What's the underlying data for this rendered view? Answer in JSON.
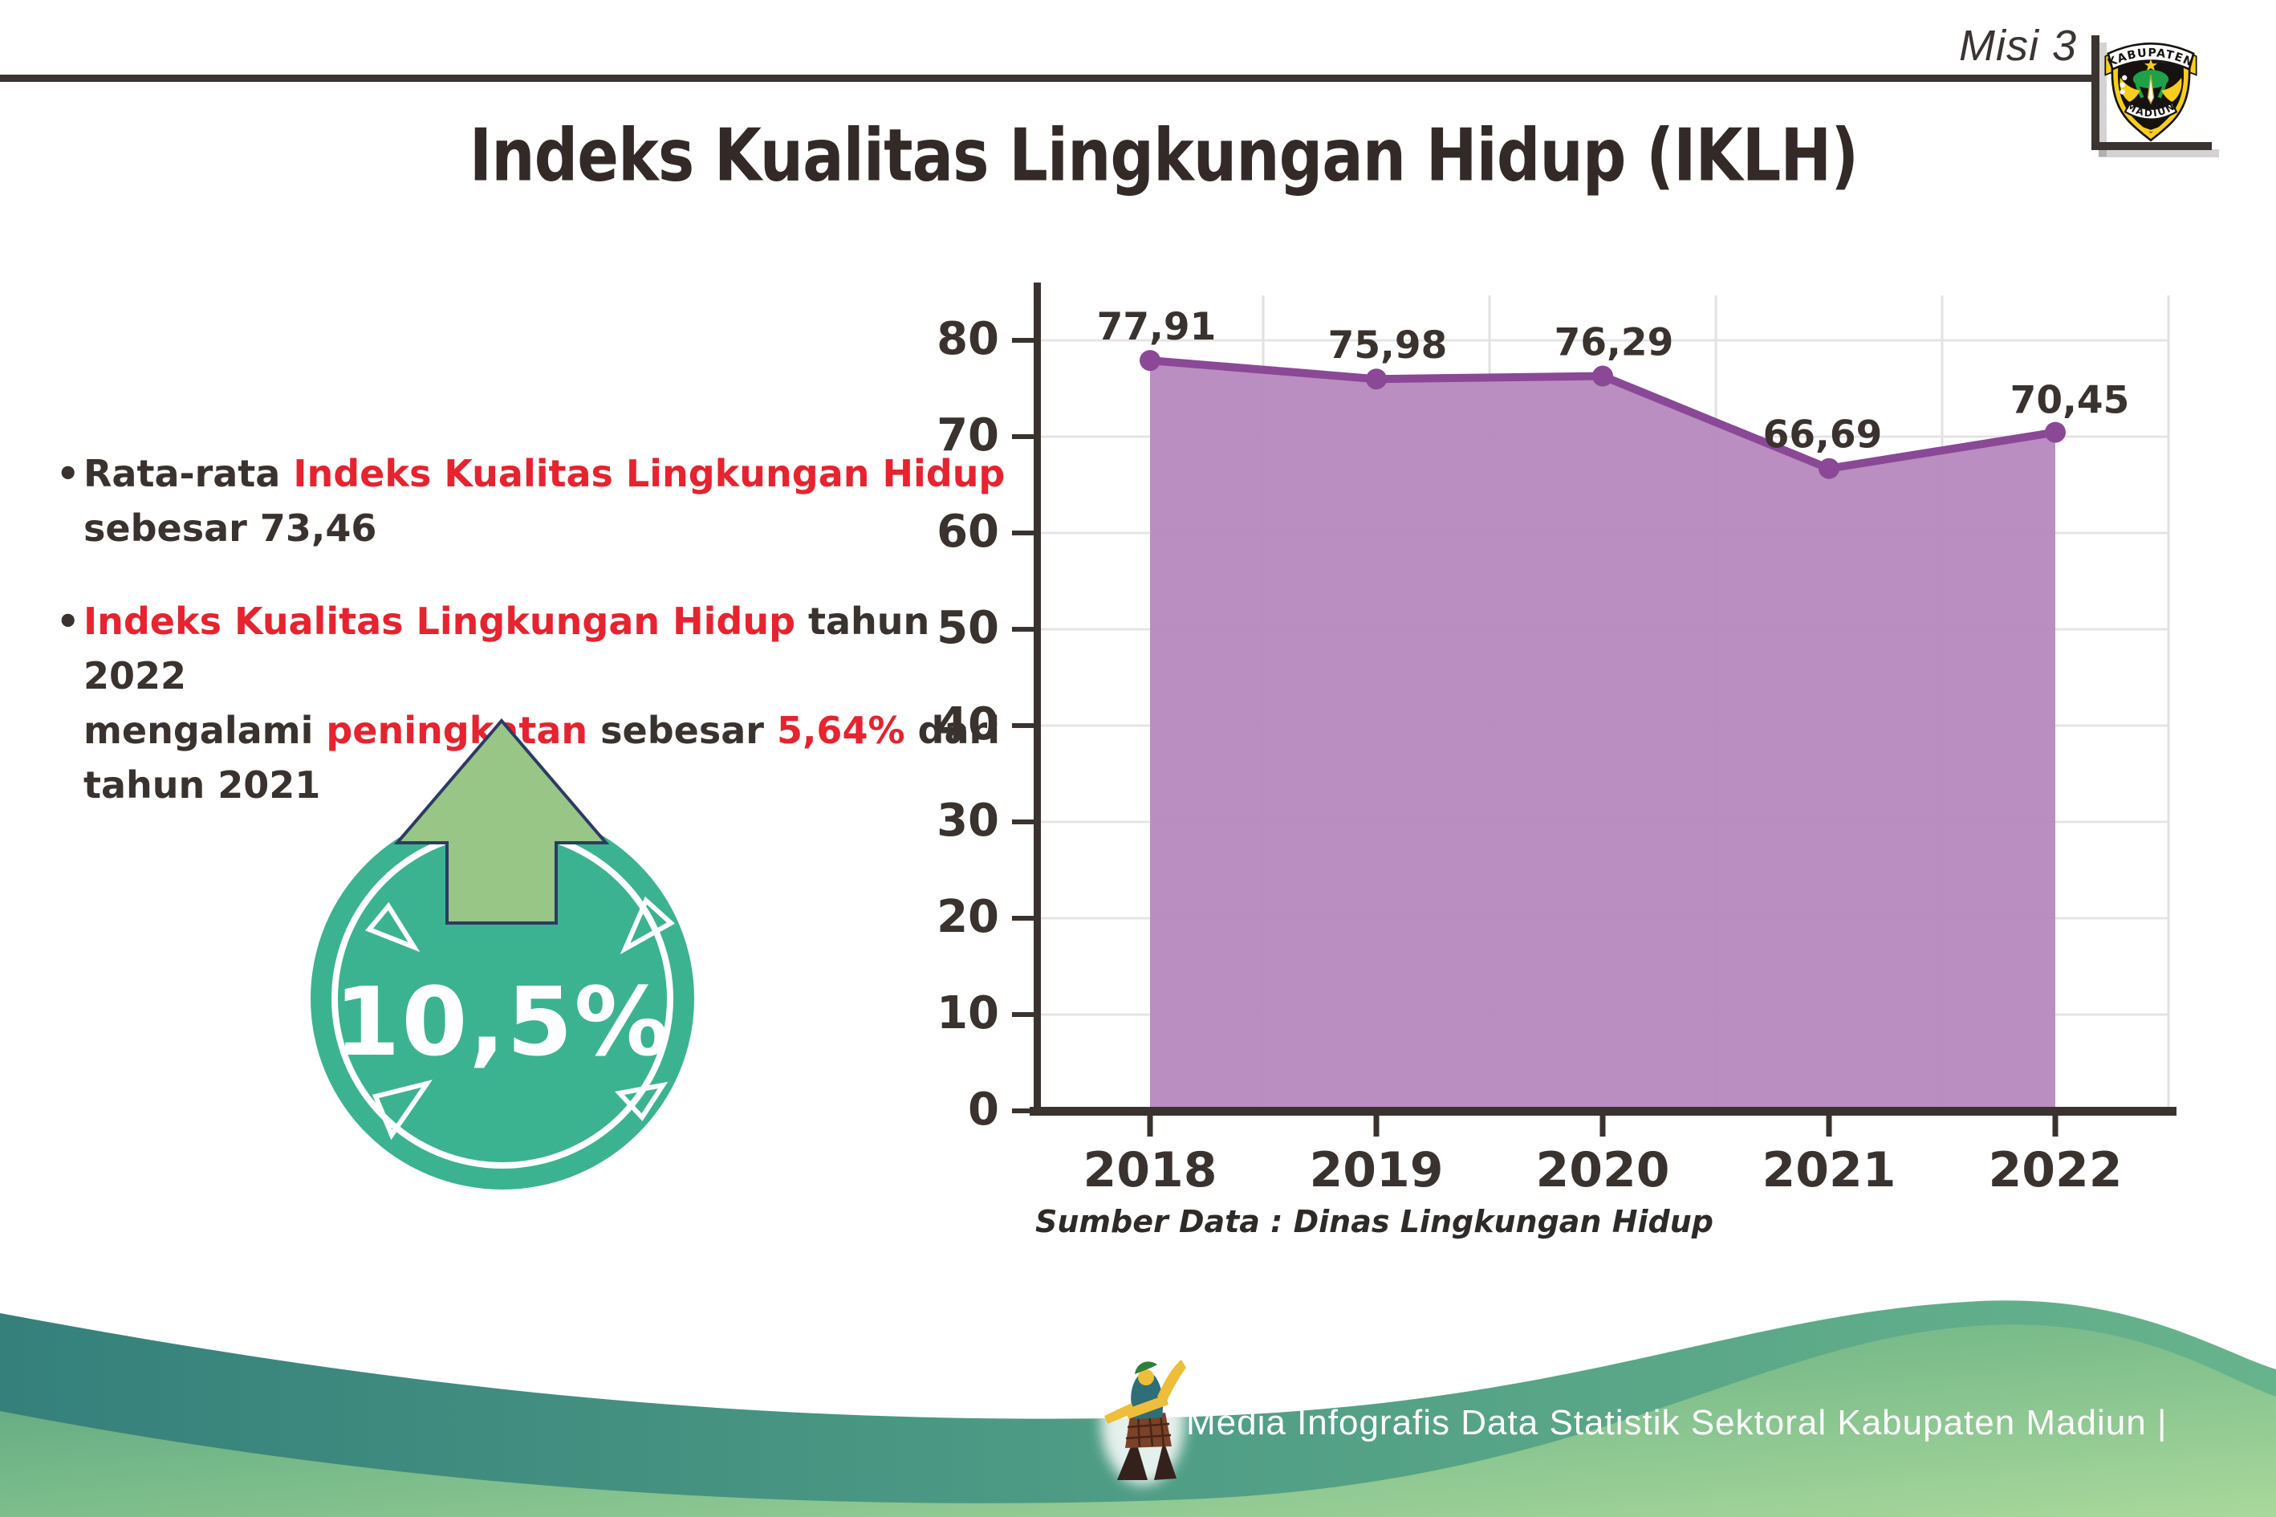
{
  "header": {
    "misi_label": "Misi 3",
    "logo": {
      "top_text": "KABUPATEN",
      "bottom_text": "MADIUN"
    }
  },
  "title": "Indeks Kualitas Lingkungan Hidup (IKLH)",
  "bullets": [
    {
      "lines": [
        [
          {
            "text": "Rata-rata ",
            "style": "dark"
          },
          {
            "text": "Indeks Kualitas Lingkungan Hidup",
            "style": "red"
          }
        ],
        [
          {
            "text": "sebesar 73,46",
            "style": "dark"
          }
        ]
      ]
    },
    {
      "lines": [
        [
          {
            "text": "Indeks Kualitas Lingkungan Hidup",
            "style": "red"
          },
          {
            "text": " tahun 2022",
            "style": "dark"
          }
        ],
        [
          {
            "text": "mengalami ",
            "style": "dark"
          },
          {
            "text": "peningkatan",
            "style": "red"
          },
          {
            "text": " sebesar ",
            "style": "dark"
          },
          {
            "text": "5,64%",
            "style": "red"
          },
          {
            "text": " dari",
            "style": "dark"
          }
        ],
        [
          {
            "text": "tahun 2021",
            "style": "dark"
          }
        ]
      ]
    }
  ],
  "badge": {
    "value": "10,5%",
    "icon": "up-arrow-icon"
  },
  "chart_data": {
    "type": "area",
    "categories": [
      "2018",
      "2019",
      "2020",
      "2021",
      "2022"
    ],
    "values": [
      77.91,
      75.98,
      76.29,
      66.69,
      70.45
    ],
    "value_labels": [
      "77,91",
      "75,98",
      "76,29",
      "66,69",
      "70,45"
    ],
    "title": "",
    "xlabel": "",
    "ylabel": "",
    "ylim": [
      0,
      85
    ],
    "yticks": [
      0,
      10,
      20,
      30,
      40,
      50,
      60,
      70,
      80
    ],
    "grid": true,
    "legend": false,
    "area_color": "#b688bd",
    "line_color": "#8a4897",
    "marker_color": "#8a4897",
    "axis_color": "#3a322e"
  },
  "source_note": "Sumber Data : Dinas Lingkungan Hidup",
  "footer": {
    "text": "Media Infografis Data Statistik Sektoral Kabupaten Madiun |",
    "mascot": "dancer-mascot-icon"
  },
  "colors": {
    "dark_text": "#3a322e",
    "red_text": "#e6232e",
    "badge_teal": "#3cb390",
    "arrow_green": "#97c687",
    "arrow_outline": "#2d3a64",
    "footer_teal": "#35807b",
    "footer_green": "#a9d89b"
  }
}
